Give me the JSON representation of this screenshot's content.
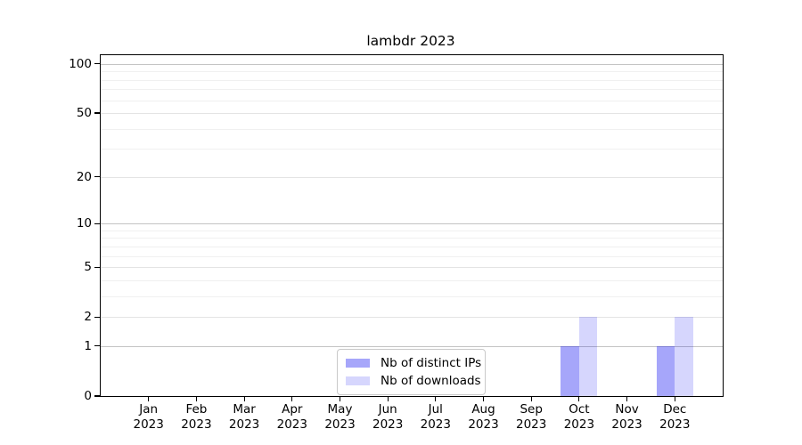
{
  "chart_data": {
    "type": "bar",
    "title": "lambdr 2023",
    "categories": [
      "Jan",
      "Feb",
      "Mar",
      "Apr",
      "May",
      "Jun",
      "Jul",
      "Aug",
      "Sep",
      "Oct",
      "Nov",
      "Dec"
    ],
    "category_year": "2023",
    "series": [
      {
        "name": "Nb of distinct IPs",
        "color": "#0000f0",
        "alpha": 0.35,
        "values": [
          0,
          0,
          0,
          0,
          0,
          0,
          0,
          0,
          0,
          1,
          0,
          1
        ]
      },
      {
        "name": "Nb of downloads",
        "color": "#0000f0",
        "alpha": 0.16,
        "values": [
          0,
          0,
          0,
          0,
          0,
          0,
          0,
          0,
          0,
          2,
          0,
          2
        ]
      }
    ],
    "yscale": "log1p",
    "ylim": [
      0,
      113
    ],
    "yticks": [
      0,
      1,
      2,
      5,
      10,
      20,
      50,
      100
    ],
    "gridlines_major": [
      1,
      10,
      100
    ],
    "gridlines_mid": [
      2,
      5,
      20,
      50
    ],
    "gridlines_minor": [
      3,
      4,
      6,
      7,
      8,
      9,
      30,
      40,
      60,
      70,
      80,
      90
    ],
    "grid": "horizontal",
    "legend_position": "inside-bottom-center",
    "axis_color": "#000000",
    "grid_major_color": "#c4c4c4",
    "grid_mid_color": "#e4e4e4",
    "grid_minor_color": "#f0f0f0"
  }
}
